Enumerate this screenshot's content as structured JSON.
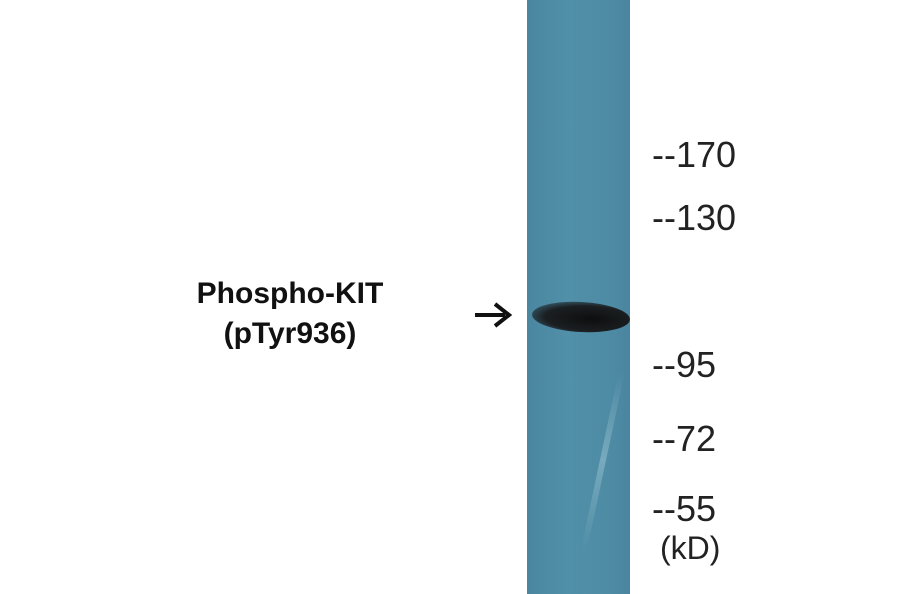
{
  "protein_label": {
    "line1": "Phospho-KIT",
    "line2": "(pTyr936)"
  },
  "markers": [
    "--170",
    "--130",
    "--95",
    "--72",
    "--55"
  ],
  "unit": "(kD)",
  "colors": {
    "membrane": "#4e8ba4",
    "band": "#111111"
  },
  "icons": {
    "arrow": "arrow-right-icon"
  }
}
